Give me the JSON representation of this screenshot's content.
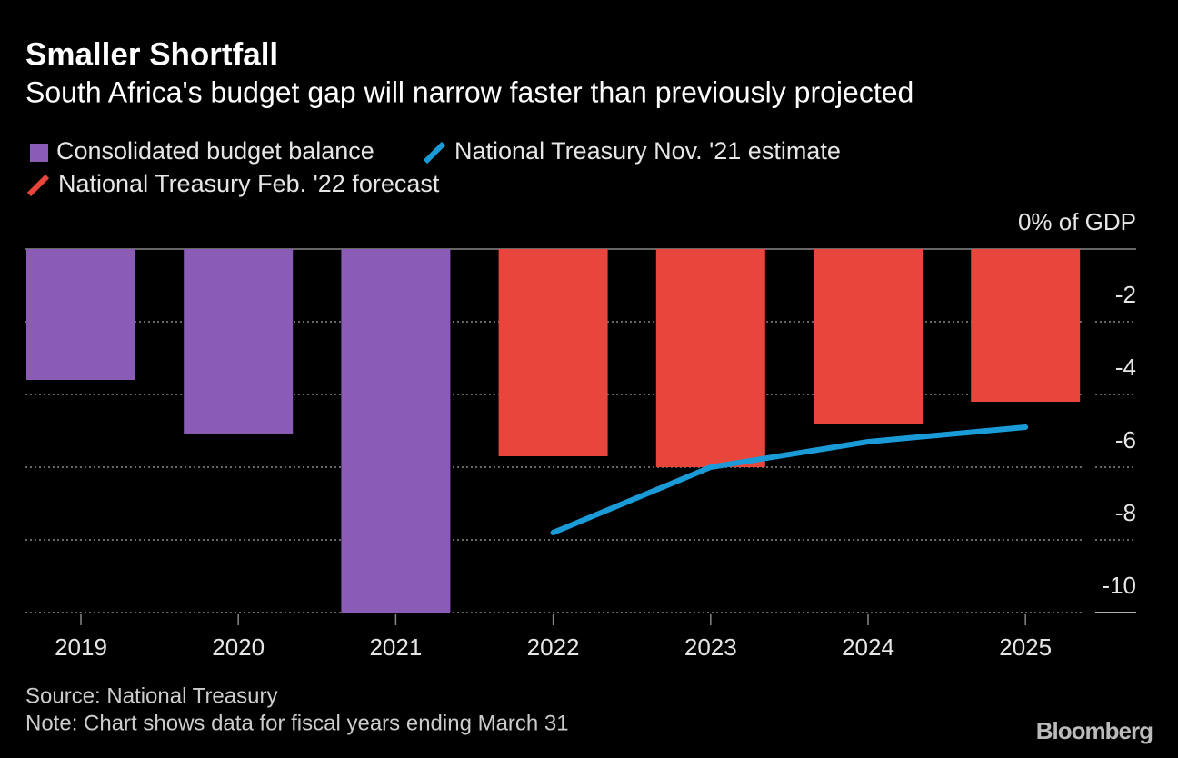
{
  "chart_data": {
    "type": "bar",
    "title": "Smaller Shortfall",
    "subtitle": "South Africa's budget gap will narrow faster than previously projected",
    "categories": [
      "2019",
      "2020",
      "2021",
      "2022",
      "2023",
      "2024",
      "2025"
    ],
    "series": [
      {
        "name": "Consolidated budget balance",
        "type": "bar",
        "color": "#8a5cb5",
        "values": [
          -3.6,
          -5.1,
          -10,
          null,
          null,
          null,
          null
        ]
      },
      {
        "name": "National Treasury Nov. '21 estimate",
        "type": "line",
        "color": "#1a9ad6",
        "values": [
          null,
          null,
          null,
          -7.8,
          -6.0,
          -5.3,
          -4.9
        ]
      },
      {
        "name": "National Treasury Feb. '22 forecast",
        "type": "bar",
        "color": "#e8453c",
        "values": [
          null,
          null,
          null,
          -5.7,
          -6.0,
          -4.8,
          -4.2
        ]
      }
    ],
    "ylim": [
      -10,
      0
    ],
    "yticks": [
      {
        "value": 0,
        "label": "0% of GDP"
      },
      -2,
      -4,
      -6,
      -8,
      -10
    ],
    "grid": true,
    "source": "Source: National Treasury",
    "note": "Note: Chart shows data for fiscal years ending March 31",
    "logo": "Bloomberg"
  }
}
